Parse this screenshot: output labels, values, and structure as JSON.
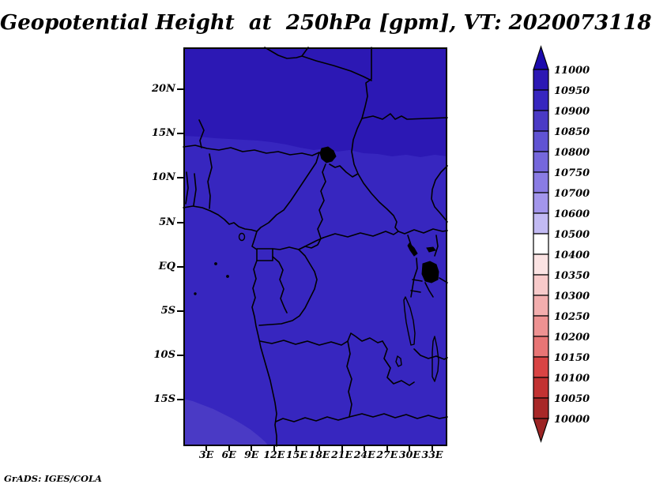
{
  "title": "Geopotential Height  at  250hPa [gpm], VT: 2020073118",
  "watermark": "GrADS: IGES/COLA",
  "axes": {
    "lat_ticks": [
      "20N",
      "15N",
      "10N",
      "5N",
      "EQ",
      "5S",
      "10S",
      "15S"
    ],
    "lon_ticks": [
      "3E",
      "6E",
      "9E",
      "12E",
      "15E",
      "18E",
      "21E",
      "24E",
      "27E",
      "30E",
      "33E"
    ]
  },
  "colorbar": {
    "labels": [
      "11000",
      "10950",
      "10900",
      "10850",
      "10800",
      "10750",
      "10700",
      "10600",
      "10500",
      "10400",
      "10350",
      "10300",
      "10250",
      "10200",
      "10150",
      "10100",
      "10050",
      "10000"
    ],
    "colors": [
      "#1c0bad",
      "#2c18b4",
      "#3726bf",
      "#4a3ac5",
      "#6053d3",
      "#7567dc",
      "#8a7ce4",
      "#a396ec",
      "#c2baf3",
      "#ffffff",
      "#fbe3e3",
      "#f8caca",
      "#f3aeae",
      "#ee9292",
      "#e87575",
      "#d94444",
      "#c23232",
      "#a82828",
      "#9c2424"
    ]
  },
  "chart_data": {
    "type": "heatmap",
    "title": "Geopotential Height at 250hPa [gpm], VT: 2020073118",
    "variable": "Geopotential Height",
    "level": "250hPa",
    "units": "gpm",
    "valid_time": "2020073118",
    "source": "GrADS: IGES/COLA",
    "lon_range_deg_east": [
      0,
      35
    ],
    "lat_range_deg": [
      -20,
      25
    ],
    "lat_tick_labels": [
      "20N",
      "15N",
      "10N",
      "5N",
      "EQ",
      "5S",
      "10S",
      "15S"
    ],
    "lon_tick_labels": [
      "3E",
      "6E",
      "9E",
      "12E",
      "15E",
      "18E",
      "21E",
      "24E",
      "27E",
      "30E",
      "33E"
    ],
    "colorbar_levels": [
      10000,
      10050,
      10100,
      10150,
      10200,
      10250,
      10300,
      10350,
      10400,
      10500,
      10600,
      10700,
      10750,
      10800,
      10850,
      10900,
      10950,
      11000
    ],
    "legend_position": "right",
    "grid": false,
    "visible_bands": [
      {
        "value_range": [
          10950,
          11000
        ],
        "color": "#2c18b4",
        "region": "north of about 12.5N (Sahara / Sahel strip)"
      },
      {
        "value_range": [
          10900,
          10950
        ],
        "color": "#3726bf",
        "region": "main map area between about 12.5N and 17S"
      },
      {
        "value_range": [
          10850,
          10900
        ],
        "color": "#4a3ac5",
        "region": "far southwest corner, south of about 15S and west of about 12E"
      }
    ]
  }
}
